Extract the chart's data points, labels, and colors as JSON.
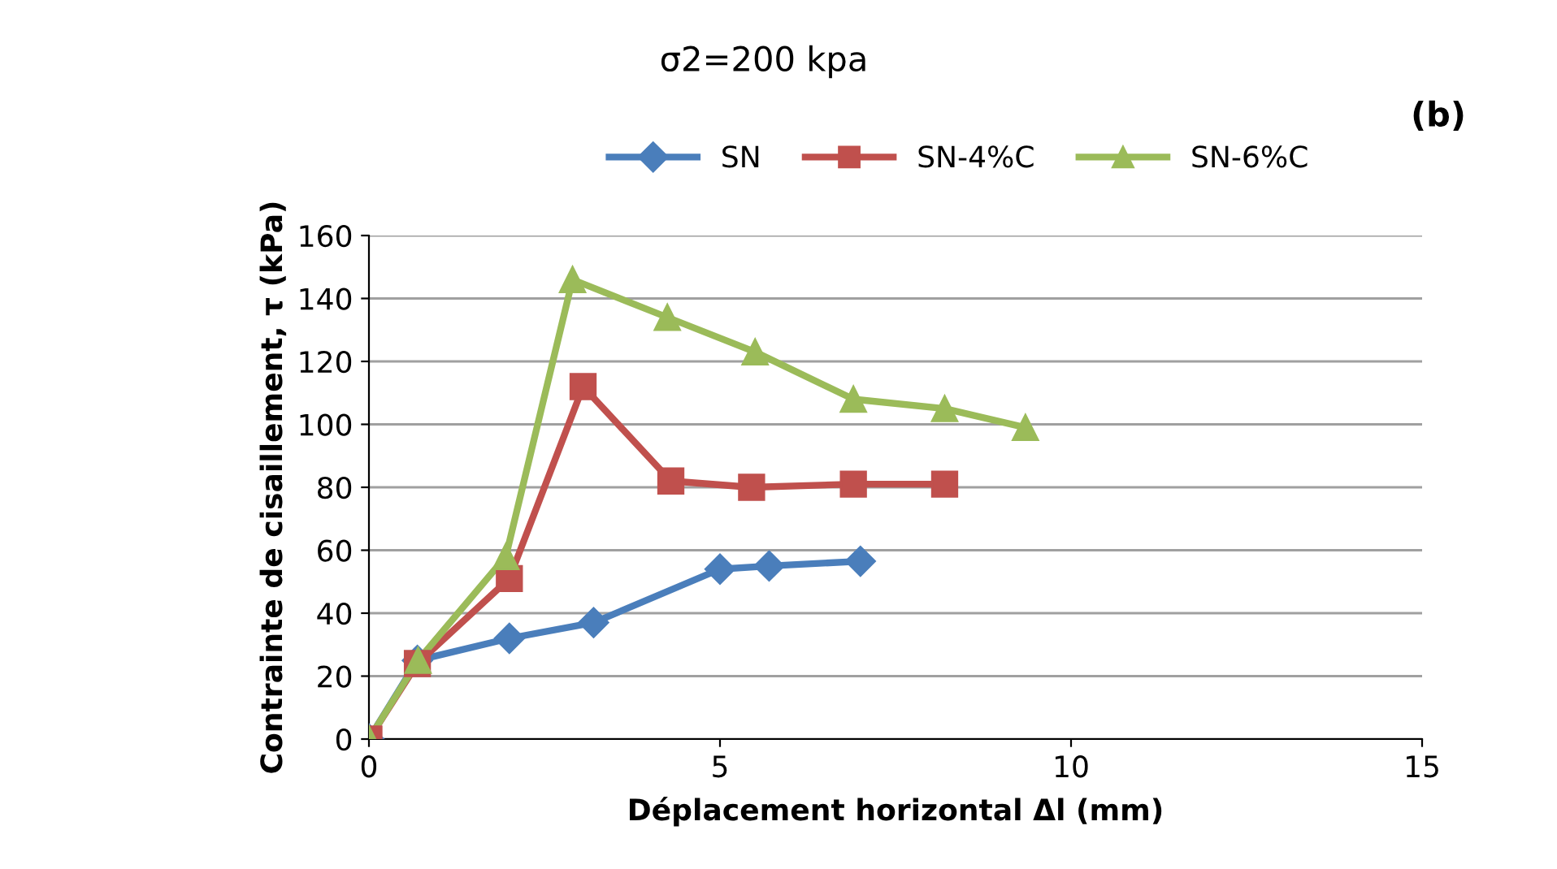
{
  "chart_data": {
    "type": "line",
    "title": "σ2=200 kpa",
    "xlabel": "Déplacement horizontal Δl (mm)",
    "ylabel": "Contrainte de cisaillement, τ (kPa)",
    "annotations": [
      "(b)"
    ],
    "series": [
      {
        "name": "SN",
        "color": "#4a7ebb",
        "marker": "diamond",
        "x": [
          0,
          0.69,
          2.0,
          3.2,
          5.0,
          5.7,
          7.0
        ],
        "values": [
          0,
          25,
          32,
          37,
          54,
          55,
          56.5
        ]
      },
      {
        "name": "SN-4%C",
        "color": "#c0504d",
        "marker": "square",
        "x": [
          0,
          0.69,
          2.0,
          3.05,
          4.3,
          5.45,
          6.9,
          8.2
        ],
        "values": [
          0,
          24,
          51,
          112,
          82,
          80,
          81,
          81
        ]
      },
      {
        "name": "SN-6%C",
        "color": "#9bbb59",
        "marker": "triangle",
        "x": [
          0,
          0.7,
          1.95,
          2.9,
          4.25,
          5.5,
          6.9,
          8.2,
          9.35
        ],
        "values": [
          0,
          25,
          58,
          146,
          134,
          123,
          108,
          105,
          99
        ]
      }
    ],
    "xlim": [
      0,
      15
    ],
    "xticks": [
      0,
      5,
      10,
      15
    ],
    "ylim": [
      0,
      160
    ],
    "yticks": [
      0,
      20,
      40,
      60,
      80,
      100,
      120,
      140,
      160
    ],
    "grid": "y",
    "legend": "top",
    "line_style": "solid"
  }
}
